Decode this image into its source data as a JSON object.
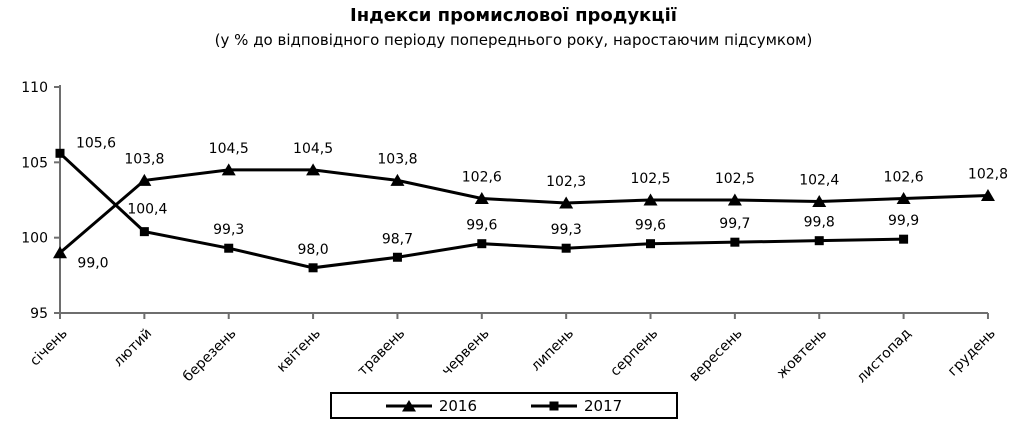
{
  "title": "Індекси промислової продукції",
  "subtitle": "(у % до відповідного періоду попереднього року, наростаючим підсумком)",
  "chart_data": {
    "type": "line",
    "categories": [
      "січень",
      "лютий",
      "березень",
      "квітень",
      "травень",
      "червень",
      "липень",
      "серпень",
      "вересень",
      "жовтень",
      "листопад",
      "грудень"
    ],
    "series": [
      {
        "name": "2016",
        "marker": "triangle",
        "values": [
          99.0,
          103.8,
          104.5,
          104.5,
          103.8,
          102.6,
          102.3,
          102.5,
          102.5,
          102.4,
          102.6,
          102.8
        ]
      },
      {
        "name": "2017",
        "marker": "square",
        "values": [
          105.6,
          100.4,
          99.3,
          98.0,
          98.7,
          99.6,
          99.3,
          99.6,
          99.7,
          99.8,
          99.9,
          null
        ]
      }
    ],
    "ylim": [
      95,
      110
    ],
    "yticks": [
      110,
      105,
      100,
      95
    ],
    "decimal_separator": ",",
    "grid": "off",
    "legend_position": "bottom",
    "colors": {
      "series": "#000000",
      "axis": "#6e6e6e",
      "background": "#ffffff",
      "text": "#000000"
    }
  }
}
